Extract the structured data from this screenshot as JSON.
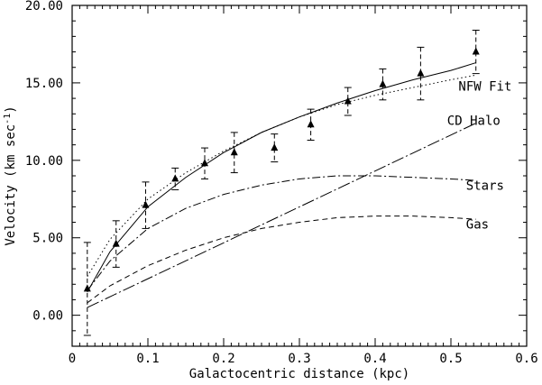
{
  "chart_data": {
    "type": "line",
    "xlabel": "Galactocentric distance (kpc)",
    "ylabel_main": "Velocity (km sec",
    "ylabel_sup": "-1",
    "ylabel_close": ")",
    "xlim": [
      0,
      0.6
    ],
    "ylim": [
      -2,
      20
    ],
    "x_ticks": [
      0,
      0.1,
      0.2,
      0.3,
      0.4,
      0.5,
      0.6
    ],
    "x_tick_labels": [
      "0",
      "0.1",
      "0.2",
      "0.3",
      "0.4",
      "0.5",
      "0.6"
    ],
    "y_ticks": [
      0,
      5,
      10,
      15,
      20
    ],
    "y_tick_labels": [
      "0.00",
      "5.00",
      "10.00",
      "15.00",
      "20.00"
    ],
    "grid": false,
    "legend": "none",
    "observations": {
      "x": [
        0.02,
        0.058,
        0.097,
        0.136,
        0.175,
        0.214,
        0.267,
        0.315,
        0.364,
        0.41,
        0.46,
        0.533
      ],
      "y": [
        1.7,
        4.6,
        7.1,
        8.8,
        9.8,
        10.5,
        10.8,
        12.3,
        13.8,
        14.9,
        15.6,
        17.0
      ],
      "err": [
        3.0,
        1.5,
        1.5,
        0.7,
        1.0,
        1.3,
        0.9,
        1.0,
        0.9,
        1.0,
        1.7,
        1.4
      ]
    },
    "series": [
      {
        "label": "NFW Fit",
        "style": "dotted",
        "x": [
          0.02,
          0.05,
          0.1,
          0.15,
          0.2,
          0.25,
          0.3,
          0.35,
          0.4,
          0.45,
          0.5,
          0.533
        ],
        "y": [
          2.5,
          4.9,
          7.5,
          9.2,
          10.6,
          11.8,
          12.8,
          13.6,
          14.2,
          14.7,
          15.2,
          15.5
        ]
      },
      {
        "label": "",
        "style": "solid",
        "x": [
          0.02,
          0.05,
          0.1,
          0.15,
          0.2,
          0.25,
          0.3,
          0.35,
          0.4,
          0.45,
          0.5,
          0.533
        ],
        "y": [
          1.5,
          4.1,
          7.0,
          8.9,
          10.5,
          11.8,
          12.8,
          13.7,
          14.5,
          15.2,
          15.8,
          16.3
        ]
      },
      {
        "label": "CD Halo",
        "style": "longdashdot",
        "x": [
          0.02,
          0.533
        ],
        "y": [
          0.5,
          12.4
        ]
      },
      {
        "label": "Stars",
        "style": "dashdot",
        "x": [
          0.02,
          0.05,
          0.1,
          0.15,
          0.2,
          0.25,
          0.3,
          0.35,
          0.4,
          0.45,
          0.5,
          0.533
        ],
        "y": [
          1.6,
          3.5,
          5.6,
          6.9,
          7.8,
          8.4,
          8.8,
          9.0,
          9.0,
          8.9,
          8.8,
          8.7
        ]
      },
      {
        "label": "Gas",
        "style": "dashed",
        "x": [
          0.02,
          0.05,
          0.1,
          0.15,
          0.2,
          0.25,
          0.3,
          0.35,
          0.4,
          0.45,
          0.5,
          0.533
        ],
        "y": [
          0.8,
          1.9,
          3.2,
          4.2,
          5.0,
          5.6,
          6.0,
          6.3,
          6.4,
          6.4,
          6.3,
          6.2
        ]
      }
    ],
    "labels": [
      {
        "text": "NFW Fit",
        "x": 0.51,
        "y": 14.5
      },
      {
        "text": "CD Halo",
        "x": 0.495,
        "y": 12.3
      },
      {
        "text": "Stars",
        "x": 0.52,
        "y": 8.1
      },
      {
        "text": "Gas",
        "x": 0.52,
        "y": 5.6
      }
    ],
    "colors": {
      "ink": "#000000",
      "background": "#ffffff"
    }
  }
}
